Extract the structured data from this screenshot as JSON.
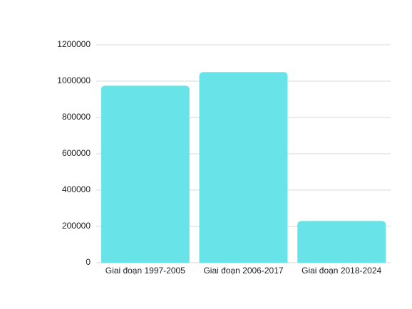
{
  "chart_data": {
    "type": "bar",
    "categories": [
      "Giai đoạn 1997-2005",
      "Giai đoạn 2006-2017",
      "Giai đoạn 2018-2024"
    ],
    "values": [
      975000,
      1050000,
      230000
    ],
    "color": "#68e4e8",
    "ylim": [
      0,
      1200000
    ],
    "yticks": [
      0,
      200000,
      400000,
      600000,
      800000,
      1000000,
      1200000
    ],
    "grid": true
  }
}
